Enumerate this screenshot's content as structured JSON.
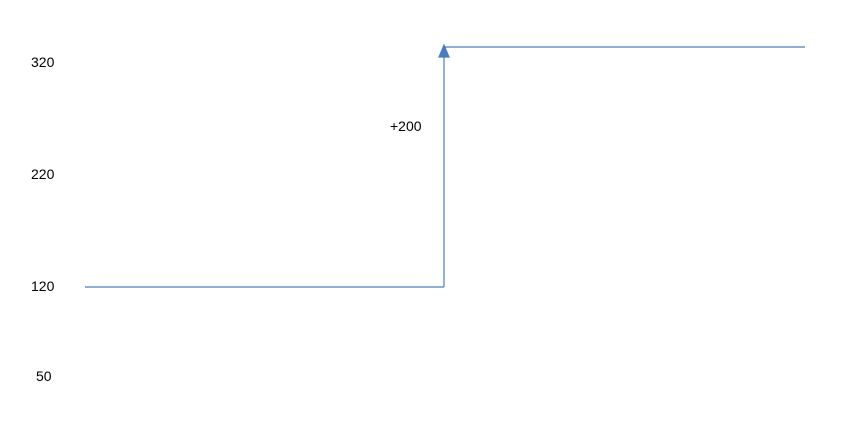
{
  "axis_labels": [
    "320",
    "220",
    "120",
    "50"
  ],
  "step_annotation": "+200",
  "line_color": "#4a7ebb"
}
